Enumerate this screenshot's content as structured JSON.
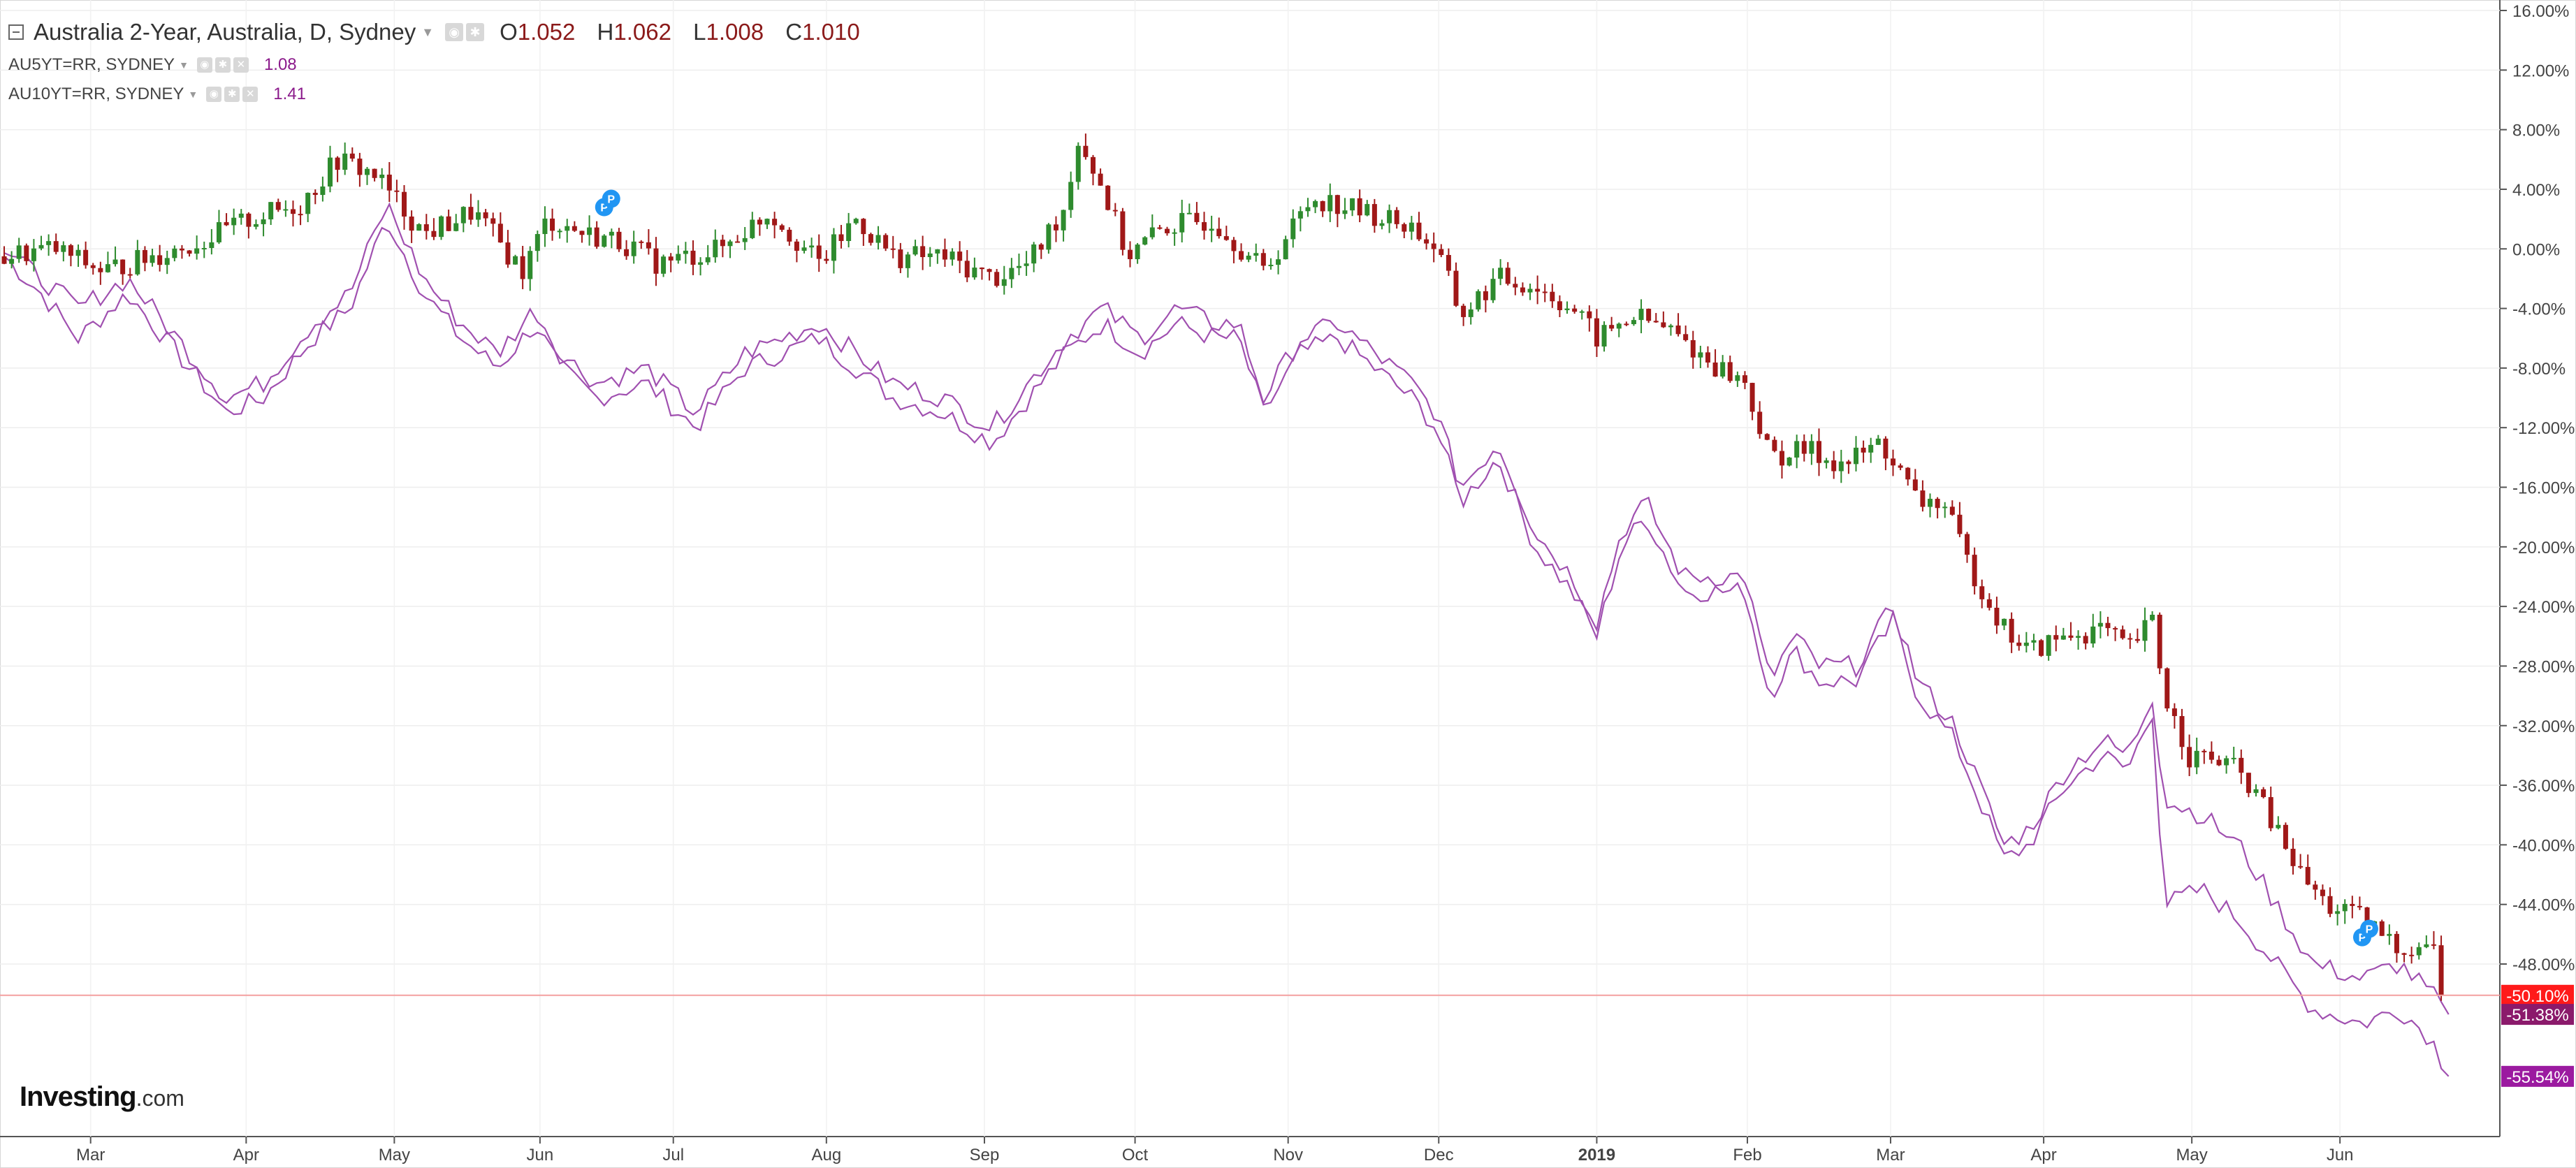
{
  "legend": {
    "main_title": "Australia 2-Year, Australia, D, Sydney",
    "ohlc": [
      {
        "key": "O",
        "value": "1.052"
      },
      {
        "key": "H",
        "value": "1.062"
      },
      {
        "key": "L",
        "value": "1.008"
      },
      {
        "key": "C",
        "value": "1.010"
      }
    ],
    "series": [
      {
        "name": "AU5YT=RR, SYDNEY",
        "value": "1.08"
      },
      {
        "name": "AU10YT=RR, SYDNEY",
        "value": "1.41"
      }
    ]
  },
  "logo": {
    "brand": "Investing",
    "suffix": ".com"
  },
  "colors": {
    "up_candle": "#2e8b2e",
    "down_candle": "#a01818",
    "compare_line": "#a050b0",
    "last_price_line": "#f4a0a0",
    "badge_main": "#ff1a1a",
    "badge_5y": "#8b1a6b",
    "badge_10y": "#9b1aa0",
    "marker": "#2196f3"
  },
  "chart_data": {
    "type": "line",
    "y_unit": "% change",
    "ylim": [
      -59,
      16
    ],
    "y_ticks": [
      "16.00%",
      "12.00%",
      "8.00%",
      "4.00%",
      "0.00%",
      "-4.00%",
      "-8.00%",
      "-12.00%",
      "-16.00%",
      "-20.00%",
      "-24.00%",
      "-28.00%",
      "-32.00%",
      "-36.00%",
      "-40.00%",
      "-44.00%",
      "-48.00%"
    ],
    "x_ticks": [
      {
        "label": "Mar",
        "t": 0.035,
        "bold": false
      },
      {
        "label": "Apr",
        "t": 0.098,
        "bold": false
      },
      {
        "label": "May",
        "t": 0.158,
        "bold": false
      },
      {
        "label": "Jun",
        "t": 0.217,
        "bold": false
      },
      {
        "label": "Jul",
        "t": 0.271,
        "bold": false
      },
      {
        "label": "Aug",
        "t": 0.333,
        "bold": false
      },
      {
        "label": "Sep",
        "t": 0.397,
        "bold": false
      },
      {
        "label": "Oct",
        "t": 0.458,
        "bold": false
      },
      {
        "label": "Nov",
        "t": 0.52,
        "bold": false
      },
      {
        "label": "Dec",
        "t": 0.581,
        "bold": false
      },
      {
        "label": "2019",
        "t": 0.645,
        "bold": true
      },
      {
        "label": "Feb",
        "t": 0.706,
        "bold": false
      },
      {
        "label": "Mar",
        "t": 0.764,
        "bold": false
      },
      {
        "label": "Apr",
        "t": 0.826,
        "bold": false
      },
      {
        "label": "May",
        "t": 0.886,
        "bold": false
      },
      {
        "label": "Jun",
        "t": 0.946,
        "bold": false
      }
    ],
    "grid": true,
    "series": [
      {
        "name": "Australia 2-Year",
        "style": "candlestick",
        "last_label": "-50.10%",
        "last_value": -50.1,
        "path": [
          [
            0,
            -0.5
          ],
          [
            0.02,
            0
          ],
          [
            0.04,
            -1.5
          ],
          [
            0.06,
            -0.5
          ],
          [
            0.08,
            0.5
          ],
          [
            0.1,
            2
          ],
          [
            0.12,
            3
          ],
          [
            0.135,
            6
          ],
          [
            0.15,
            5
          ],
          [
            0.17,
            1
          ],
          [
            0.19,
            2.5
          ],
          [
            0.21,
            -1.5
          ],
          [
            0.22,
            2
          ],
          [
            0.235,
            1
          ],
          [
            0.25,
            0.5
          ],
          [
            0.265,
            -1
          ],
          [
            0.29,
            0
          ],
          [
            0.31,
            2.5
          ],
          [
            0.33,
            -1
          ],
          [
            0.345,
            2
          ],
          [
            0.36,
            -0.5
          ],
          [
            0.38,
            -0.5
          ],
          [
            0.4,
            -2
          ],
          [
            0.415,
            -1
          ],
          [
            0.43,
            3
          ],
          [
            0.435,
            7.5
          ],
          [
            0.445,
            4
          ],
          [
            0.455,
            -0.5
          ],
          [
            0.47,
            1.5
          ],
          [
            0.49,
            2
          ],
          [
            0.51,
            -1.5
          ],
          [
            0.53,
            3.5
          ],
          [
            0.55,
            2.5
          ],
          [
            0.57,
            1.5
          ],
          [
            0.58,
            0
          ],
          [
            0.59,
            -4.5
          ],
          [
            0.605,
            -2
          ],
          [
            0.62,
            -2.5
          ],
          [
            0.635,
            -4
          ],
          [
            0.645,
            -6
          ],
          [
            0.66,
            -4.5
          ],
          [
            0.675,
            -5.5
          ],
          [
            0.69,
            -7.5
          ],
          [
            0.705,
            -9
          ],
          [
            0.715,
            -14
          ],
          [
            0.73,
            -13.5
          ],
          [
            0.745,
            -14.5
          ],
          [
            0.76,
            -13
          ],
          [
            0.775,
            -17
          ],
          [
            0.785,
            -17
          ],
          [
            0.795,
            -21
          ],
          [
            0.81,
            -25.5
          ],
          [
            0.82,
            -27
          ],
          [
            0.835,
            -26
          ],
          [
            0.85,
            -25.5
          ],
          [
            0.86,
            -27
          ],
          [
            0.87,
            -25
          ],
          [
            0.875,
            -30
          ],
          [
            0.885,
            -34
          ],
          [
            0.9,
            -34.5
          ],
          [
            0.91,
            -36
          ],
          [
            0.92,
            -39
          ],
          [
            0.93,
            -42
          ],
          [
            0.94,
            -44
          ],
          [
            0.955,
            -45
          ],
          [
            0.97,
            -47
          ],
          [
            0.983,
            -46.5
          ],
          [
            0.99,
            -50.1
          ]
        ]
      },
      {
        "name": "AU5YT=RR, SYDNEY",
        "style": "line",
        "last_label": "-51.38%",
        "last_value": -51.38,
        "path": [
          [
            0,
            0
          ],
          [
            0.015,
            -2
          ],
          [
            0.03,
            -4
          ],
          [
            0.05,
            -2
          ],
          [
            0.07,
            -6
          ],
          [
            0.09,
            -10
          ],
          [
            0.105,
            -9
          ],
          [
            0.125,
            -5
          ],
          [
            0.14,
            -3
          ],
          [
            0.155,
            3
          ],
          [
            0.17,
            -2
          ],
          [
            0.185,
            -5
          ],
          [
            0.2,
            -7
          ],
          [
            0.215,
            -4
          ],
          [
            0.225,
            -7
          ],
          [
            0.24,
            -9
          ],
          [
            0.26,
            -8
          ],
          [
            0.28,
            -11
          ],
          [
            0.3,
            -7
          ],
          [
            0.315,
            -6
          ],
          [
            0.33,
            -5
          ],
          [
            0.345,
            -7
          ],
          [
            0.36,
            -9
          ],
          [
            0.38,
            -10
          ],
          [
            0.4,
            -12
          ],
          [
            0.415,
            -9
          ],
          [
            0.43,
            -6
          ],
          [
            0.445,
            -4
          ],
          [
            0.46,
            -6
          ],
          [
            0.475,
            -4
          ],
          [
            0.49,
            -5
          ],
          [
            0.5,
            -5
          ],
          [
            0.51,
            -10
          ],
          [
            0.525,
            -6
          ],
          [
            0.54,
            -5
          ],
          [
            0.555,
            -7
          ],
          [
            0.57,
            -9
          ],
          [
            0.58,
            -11
          ],
          [
            0.59,
            -16
          ],
          [
            0.605,
            -13
          ],
          [
            0.62,
            -19
          ],
          [
            0.635,
            -22
          ],
          [
            0.645,
            -25
          ],
          [
            0.655,
            -19
          ],
          [
            0.665,
            -17
          ],
          [
            0.68,
            -22
          ],
          [
            0.695,
            -22
          ],
          [
            0.705,
            -22
          ],
          [
            0.715,
            -29
          ],
          [
            0.725,
            -26
          ],
          [
            0.735,
            -28
          ],
          [
            0.75,
            -28
          ],
          [
            0.765,
            -24
          ],
          [
            0.775,
            -29
          ],
          [
            0.79,
            -32
          ],
          [
            0.8,
            -36
          ],
          [
            0.81,
            -40
          ],
          [
            0.82,
            -39
          ],
          [
            0.835,
            -35
          ],
          [
            0.85,
            -33
          ],
          [
            0.86,
            -34
          ],
          [
            0.87,
            -30
          ],
          [
            0.875,
            -37
          ],
          [
            0.89,
            -38
          ],
          [
            0.905,
            -40
          ],
          [
            0.92,
            -44
          ],
          [
            0.935,
            -48
          ],
          [
            0.955,
            -49
          ],
          [
            0.97,
            -48
          ],
          [
            0.983,
            -50
          ],
          [
            0.99,
            -51.38
          ]
        ]
      },
      {
        "name": "AU10YT=RR, SYDNEY",
        "style": "line",
        "last_label": "-55.54%",
        "last_value": -55.54,
        "path": [
          [
            0,
            -0.5
          ],
          [
            0.015,
            -3
          ],
          [
            0.03,
            -6
          ],
          [
            0.05,
            -3
          ],
          [
            0.07,
            -7
          ],
          [
            0.09,
            -11
          ],
          [
            0.105,
            -10
          ],
          [
            0.125,
            -6
          ],
          [
            0.14,
            -4
          ],
          [
            0.155,
            2
          ],
          [
            0.17,
            -3
          ],
          [
            0.185,
            -6
          ],
          [
            0.2,
            -8
          ],
          [
            0.215,
            -5
          ],
          [
            0.225,
            -8
          ],
          [
            0.24,
            -10
          ],
          [
            0.26,
            -9
          ],
          [
            0.28,
            -12
          ],
          [
            0.3,
            -8
          ],
          [
            0.315,
            -7
          ],
          [
            0.33,
            -6
          ],
          [
            0.345,
            -8
          ],
          [
            0.36,
            -10
          ],
          [
            0.38,
            -11
          ],
          [
            0.4,
            -13
          ],
          [
            0.415,
            -10
          ],
          [
            0.43,
            -7
          ],
          [
            0.445,
            -5
          ],
          [
            0.46,
            -7
          ],
          [
            0.475,
            -5
          ],
          [
            0.49,
            -6
          ],
          [
            0.5,
            -6
          ],
          [
            0.51,
            -11
          ],
          [
            0.525,
            -7
          ],
          [
            0.54,
            -6
          ],
          [
            0.555,
            -8
          ],
          [
            0.57,
            -10
          ],
          [
            0.58,
            -12
          ],
          [
            0.59,
            -17
          ],
          [
            0.605,
            -14
          ],
          [
            0.62,
            -20
          ],
          [
            0.635,
            -23
          ],
          [
            0.645,
            -26
          ],
          [
            0.655,
            -20
          ],
          [
            0.665,
            -18
          ],
          [
            0.68,
            -23
          ],
          [
            0.695,
            -23
          ],
          [
            0.705,
            -23
          ],
          [
            0.715,
            -30
          ],
          [
            0.725,
            -27
          ],
          [
            0.735,
            -29
          ],
          [
            0.75,
            -29
          ],
          [
            0.765,
            -25
          ],
          [
            0.775,
            -30
          ],
          [
            0.79,
            -33
          ],
          [
            0.8,
            -37
          ],
          [
            0.81,
            -41
          ],
          [
            0.82,
            -40
          ],
          [
            0.835,
            -36
          ],
          [
            0.85,
            -34
          ],
          [
            0.86,
            -35
          ],
          [
            0.87,
            -31
          ],
          [
            0.875,
            -44
          ],
          [
            0.89,
            -43
          ],
          [
            0.905,
            -45
          ],
          [
            0.92,
            -48
          ],
          [
            0.935,
            -51
          ],
          [
            0.955,
            -52
          ],
          [
            0.97,
            -51
          ],
          [
            0.983,
            -53
          ],
          [
            0.99,
            -55.54
          ]
        ]
      }
    ]
  }
}
